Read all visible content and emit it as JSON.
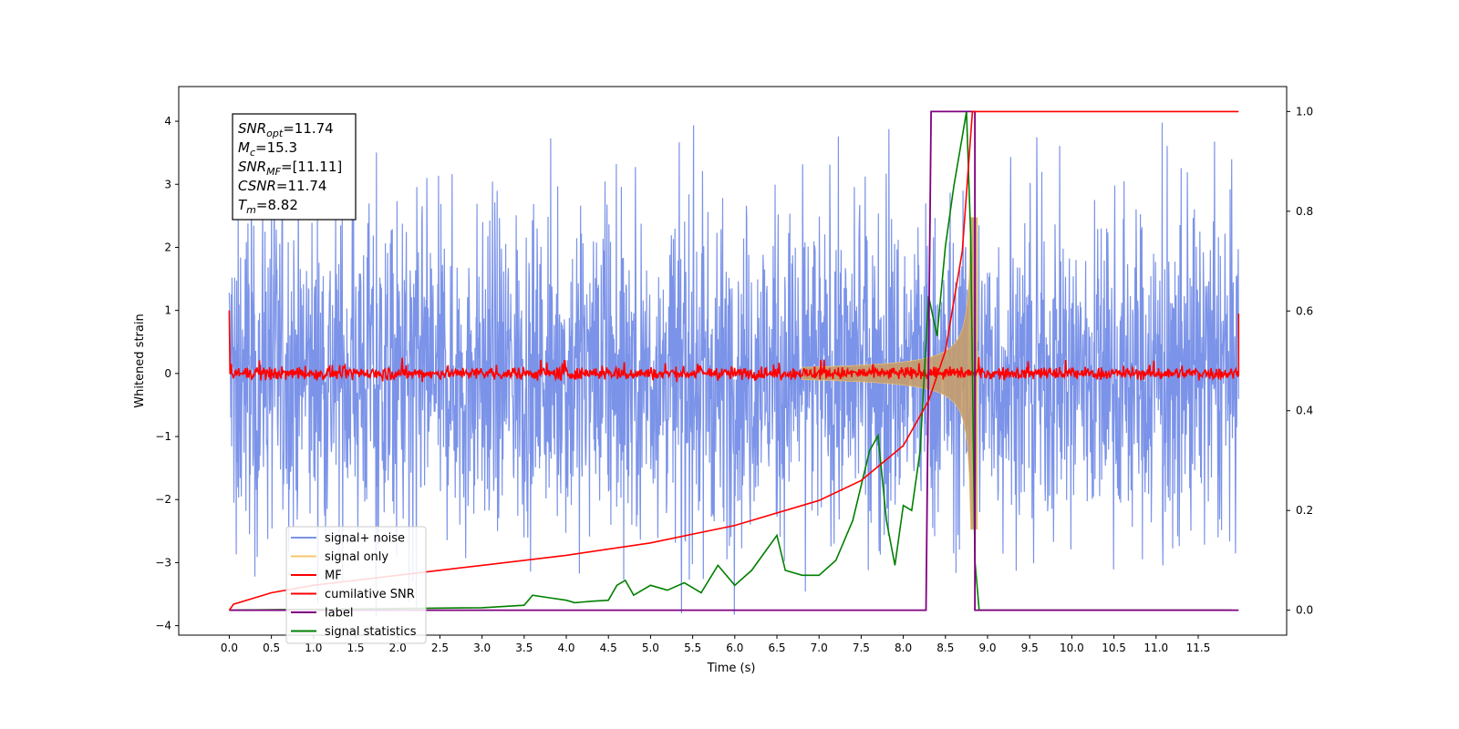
{
  "chart_data": {
    "type": "line",
    "xlabel": "Time (s)",
    "ylabel": "Whitened strain",
    "xlim": [
      -0.6,
      12.55
    ],
    "ylim": [
      -4.15,
      4.55
    ],
    "ylim_right": [
      -0.05,
      1.05
    ],
    "x_ticks": [
      "0.0",
      "0.5",
      "1.0",
      "1.5",
      "2.0",
      "2.5",
      "3.0",
      "3.5",
      "4.0",
      "4.5",
      "5.0",
      "5.5",
      "6.0",
      "6.5",
      "7.0",
      "7.5",
      "8.0",
      "8.5",
      "9.0",
      "9.5",
      "10.0",
      "10.5",
      "11.0",
      "11.5"
    ],
    "y_ticks": [
      "4",
      "3",
      "2",
      "1",
      "0",
      "−1",
      "−2",
      "−3",
      "−4"
    ],
    "y_ticks_right": [
      "1.0",
      "0.8",
      "0.6",
      "0.4",
      "0.2",
      "0.0"
    ],
    "legend_position": "lower-left",
    "legend": [
      {
        "name": "signal+ noise",
        "color": "#7b93e8"
      },
      {
        "name": "signal only",
        "color": "#f5c86b"
      },
      {
        "name": "MF",
        "color": "#ff0000"
      },
      {
        "name": "cumilative SNR",
        "color": "#ff0000"
      },
      {
        "name": "label",
        "color": "#7f007f"
      },
      {
        "name": "signal statistics",
        "color": "#008000"
      }
    ],
    "annotation": [
      {
        "base": "SNR",
        "sub": "opt",
        "rest": "=11.74"
      },
      {
        "base": "M",
        "sub": "c",
        "rest": "=15.3"
      },
      {
        "base": "SNR",
        "sub": "MF",
        "rest": "=[11.11]"
      },
      {
        "base": "CSNR",
        "sub": "",
        "rest": "=11.74"
      },
      {
        "base": "T",
        "sub": "m",
        "rest": "=8.82"
      }
    ],
    "series": [
      {
        "name": "signal+ noise",
        "axis": "left",
        "style": "noise band",
        "center": 0,
        "typical_amplitude": 1.6,
        "max": 4.2,
        "min": -3.85,
        "x_range": [
          0.0,
          11.98
        ]
      },
      {
        "name": "signal only",
        "axis": "left",
        "style": "chirp envelope",
        "merger_time": 8.82,
        "peak_amplitude": 2.6,
        "x_range": [
          0.0,
          11.98
        ]
      },
      {
        "name": "MF",
        "axis": "left",
        "style": "noise band",
        "center": 0,
        "typical_amplitude": 0.15,
        "start_value": 1.0,
        "end_value": 0.95,
        "x_range": [
          0.0,
          11.98
        ]
      },
      {
        "name": "cumilative SNR",
        "axis": "right",
        "x": [
          0.0,
          0.05,
          0.5,
          1.0,
          2.0,
          3.0,
          4.0,
          5.0,
          6.0,
          7.0,
          7.5,
          8.0,
          8.3,
          8.5,
          8.7,
          8.82,
          8.83,
          11.98
        ],
        "y": [
          0.0,
          0.012,
          0.035,
          0.05,
          0.07,
          0.09,
          0.11,
          0.135,
          0.17,
          0.22,
          0.26,
          0.33,
          0.42,
          0.52,
          0.72,
          1.0,
          1.0,
          1.0
        ]
      },
      {
        "name": "label",
        "axis": "right",
        "x": [
          0.0,
          8.27,
          8.33,
          8.85,
          8.85,
          11.98
        ],
        "y": [
          0.0,
          0.0,
          1.0,
          1.0,
          0.0,
          0.0
        ]
      },
      {
        "name": "signal statistics",
        "axis": "right",
        "x": [
          0.0,
          3.0,
          3.5,
          3.6,
          3.8,
          4.0,
          4.1,
          4.3,
          4.5,
          4.6,
          4.7,
          4.8,
          5.0,
          5.2,
          5.4,
          5.6,
          5.8,
          6.0,
          6.2,
          6.5,
          6.6,
          6.8,
          7.0,
          7.2,
          7.4,
          7.6,
          7.7,
          7.8,
          7.9,
          8.0,
          8.1,
          8.2,
          8.3,
          8.4,
          8.5,
          8.6,
          8.7,
          8.75,
          8.8,
          8.85,
          8.9,
          11.9
        ],
        "y": [
          0.0,
          0.005,
          0.01,
          0.03,
          0.025,
          0.02,
          0.015,
          0.018,
          0.02,
          0.05,
          0.06,
          0.03,
          0.05,
          0.04,
          0.055,
          0.035,
          0.09,
          0.05,
          0.08,
          0.15,
          0.08,
          0.07,
          0.07,
          0.1,
          0.18,
          0.32,
          0.35,
          0.18,
          0.09,
          0.21,
          0.2,
          0.32,
          0.63,
          0.55,
          0.73,
          0.85,
          0.95,
          1.0,
          0.75,
          0.1,
          0.0,
          0.0
        ]
      }
    ]
  }
}
